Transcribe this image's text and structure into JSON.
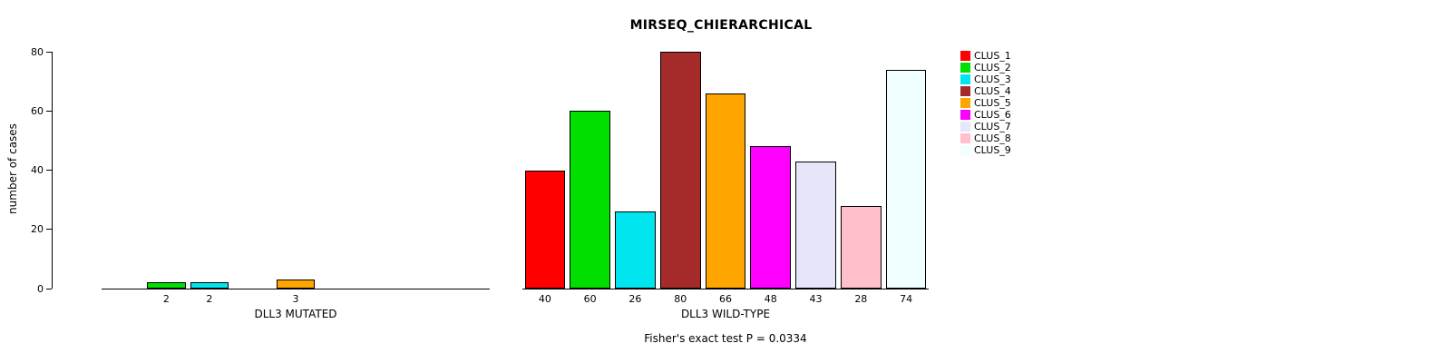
{
  "chart_data": {
    "type": "bar",
    "title": "MIRSEQ_CHIERARCHICAL",
    "ylabel": "number of cases",
    "ylim": [
      0,
      80
    ],
    "yticks": [
      0,
      20,
      40,
      60,
      80
    ],
    "grid": false,
    "legend_position": "right",
    "bar_border_color": "#000000",
    "show_value_labels": true,
    "series": [
      {
        "name": "CLUS_1",
        "color": "#FF0000"
      },
      {
        "name": "CLUS_2",
        "color": "#00DF00"
      },
      {
        "name": "CLUS_3",
        "color": "#00E5EE"
      },
      {
        "name": "CLUS_4",
        "color": "#A52A2A"
      },
      {
        "name": "CLUS_5",
        "color": "#FFA500"
      },
      {
        "name": "CLUS_6",
        "color": "#FF00FF"
      },
      {
        "name": "CLUS_7",
        "color": "#E6E6FA"
      },
      {
        "name": "CLUS_8",
        "color": "#FFC0CB"
      },
      {
        "name": "CLUS_9",
        "color": "#F0FFFF"
      }
    ],
    "groups": [
      {
        "label": "DLL3 MUTATED",
        "values": [
          0,
          2,
          2,
          0,
          3,
          0,
          0,
          0,
          0
        ]
      },
      {
        "label": "DLL3 WILD-TYPE",
        "values": [
          40,
          60,
          26,
          80,
          66,
          48,
          43,
          28,
          74
        ]
      }
    ],
    "annotation": "Fisher's exact test P = 0.0334"
  }
}
